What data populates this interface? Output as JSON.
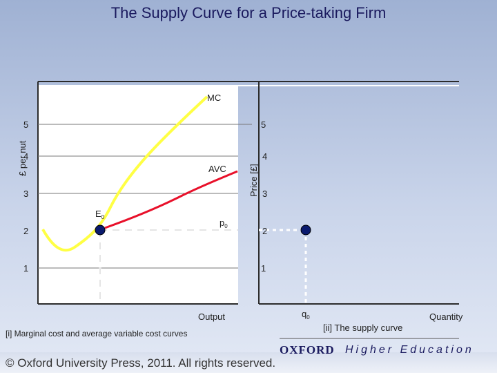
{
  "title": "The Supply Curve for a Price-taking Firm",
  "left_panel": {
    "y_axis_label": "£ per nut",
    "x_axis_label": "Output",
    "caption": "[i] Marginal cost and average variable cost curves",
    "y_ticks": [
      "5",
      "4",
      "3",
      "2",
      "1"
    ],
    "mc_label": "MC",
    "avc_label": "AVC",
    "e_label": "E",
    "e_subscript": "0",
    "p_label": "p",
    "p_subscript": "0"
  },
  "right_panel": {
    "y_axis_label": "Price [£]",
    "x_axis_label": "Quantity",
    "caption": "[ii] The supply curve",
    "y_ticks": [
      "5",
      "4",
      "3",
      "2",
      "1"
    ],
    "q_label": "q",
    "q_subscript": "0"
  },
  "footer": {
    "copyright": "© Oxford University Press, 2011. All rights reserved.",
    "publisher": "OXFORD",
    "tagline": "Higher Education"
  },
  "colors": {
    "mc_curve": "#ffff44",
    "avc_curve": "#e8102a",
    "point": "#0a1a6e",
    "title": "#1a1a5e"
  }
}
